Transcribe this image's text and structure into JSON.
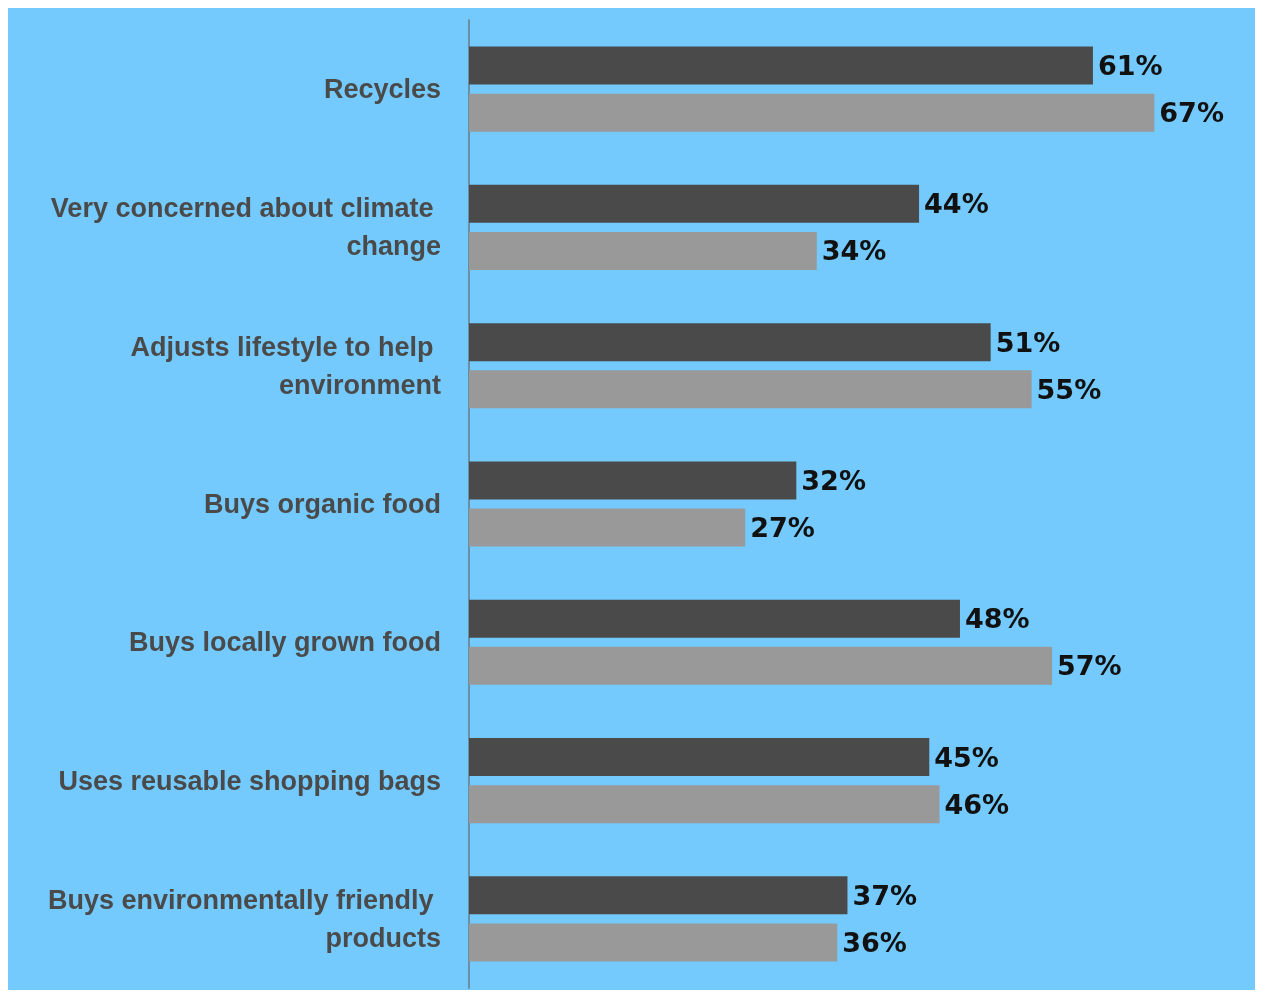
{
  "chart_data": {
    "type": "bar",
    "orientation": "horizontal",
    "categories": [
      "Recycles",
      "Very concerned about climate change",
      "Adjusts lifestyle to help environment",
      "Buys organic food",
      "Buys locally grown food",
      "Uses reusable shopping bags",
      "Buys environmentally friendly products"
    ],
    "series": [
      {
        "color": "#4a4a4a",
        "values": [
          61,
          44,
          51,
          32,
          48,
          45,
          37
        ],
        "value_labels": [
          "61%",
          "44%",
          "51%",
          "32%",
          "48%",
          "45%",
          "37%"
        ]
      },
      {
        "color": "#999999",
        "values": [
          67,
          34,
          55,
          27,
          57,
          46,
          36
        ],
        "value_labels": [
          "67%",
          "34%",
          "55%",
          "27%",
          "57%",
          "46%",
          "36%"
        ]
      }
    ],
    "stacked": false
  }
}
